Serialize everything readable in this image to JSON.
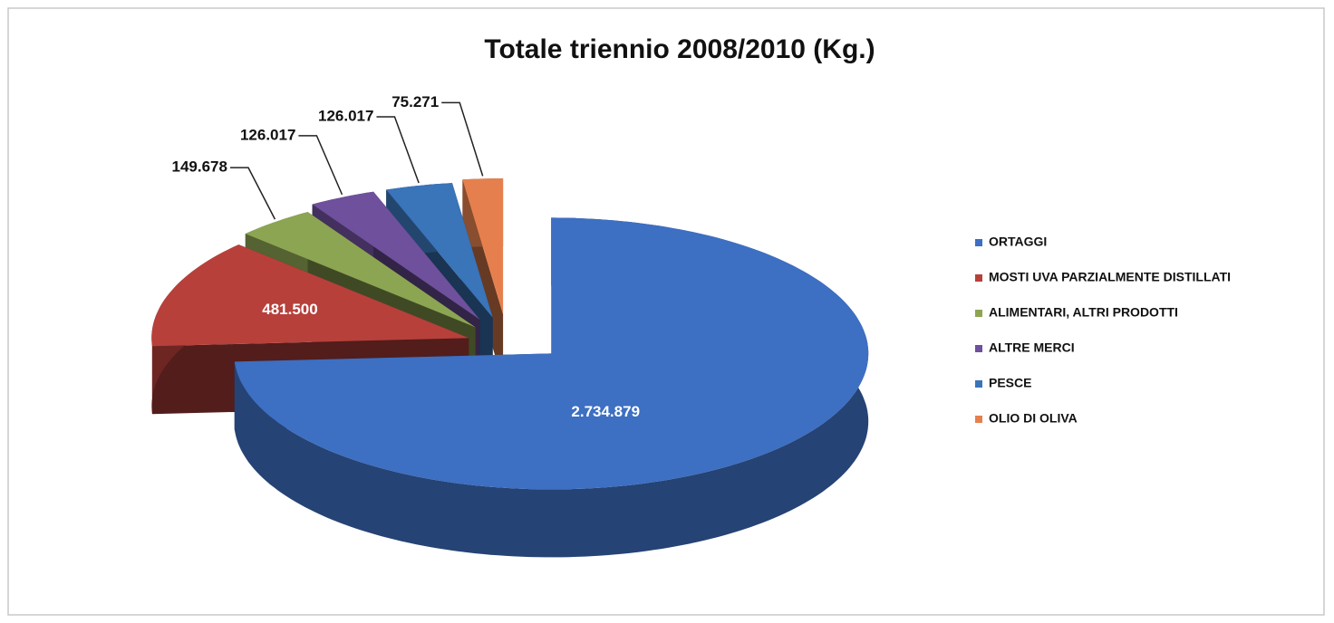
{
  "chart_data": {
    "type": "pie3d",
    "title": "Totale triennio  2008/2010 (Kg.)",
    "categories": [
      "ORTAGGI",
      "MOSTI UVA PARZIALMENTE DISTILLATI",
      "ALIMENTARI, ALTRI PRODOTTI",
      "ALTRE MERCI",
      "PESCE",
      "OLIO DI OLIVA"
    ],
    "values": [
      2734879,
      481500,
      149678,
      126017,
      126017,
      75271
    ],
    "value_labels": [
      "2.734.879",
      "481.500",
      "149.678",
      "126.017",
      "126.017",
      "75.271"
    ],
    "colors": [
      "#3d6fc2",
      "#b7403b",
      "#8ca552",
      "#6f509c",
      "#3a74b9",
      "#e5804e"
    ],
    "legend": "right"
  }
}
